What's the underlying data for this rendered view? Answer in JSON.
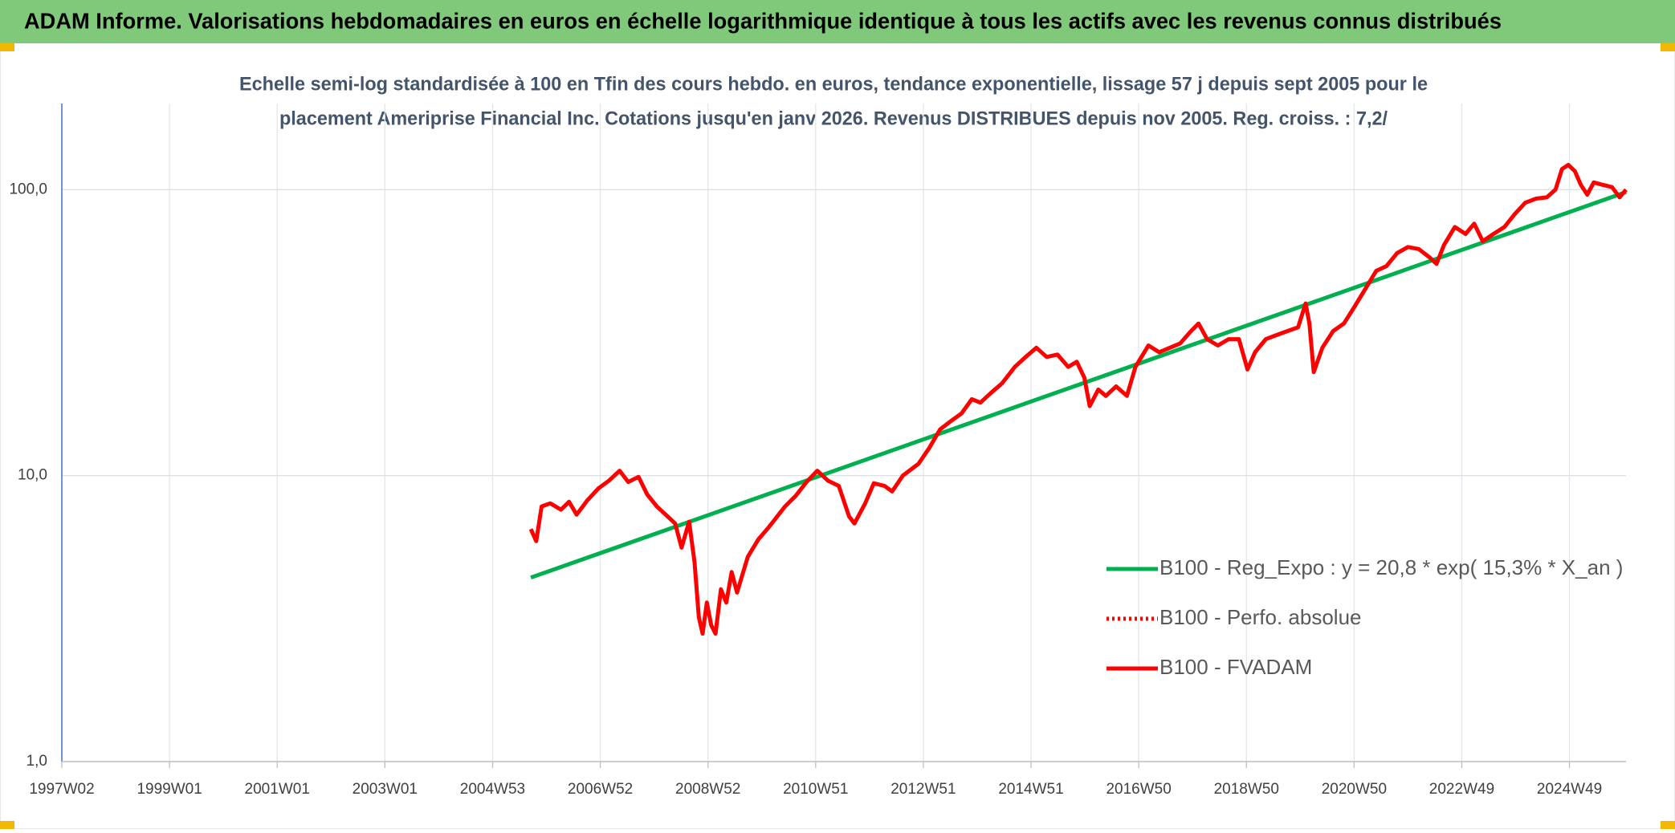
{
  "header": {
    "title": "ADAM Informe. Valorisations hebdomadaires en euros en échelle logarithmique identique à tous les actifs avec les revenus connus distribués"
  },
  "chart_data": {
    "type": "line",
    "title": [
      "Echelle semi-log standardisée à 100 en Tfin des cours hebdo. en euros, tendance exponentielle, lissage 57 j depuis sept 2005 pour le",
      "placement Ameriprise Financial Inc. Cotations jusqu'en janv 2026. Revenus DISTRIBUES depuis nov 2005. Reg. croiss. : 7,2/"
    ],
    "log_scale": true,
    "grid": true,
    "legend": "lower right",
    "xlim": [
      1997.0,
      2026.05
    ],
    "xticks": [
      {
        "value": 1997,
        "label": "1997W02"
      },
      {
        "value": 1999,
        "label": "1999W01"
      },
      {
        "value": 2001,
        "label": "2001W01"
      },
      {
        "value": 2003,
        "label": "2003W01"
      },
      {
        "value": 2005,
        "label": "2004W53"
      },
      {
        "value": 2007,
        "label": "2006W52"
      },
      {
        "value": 2009,
        "label": "2008W52"
      },
      {
        "value": 2011,
        "label": "2010W51"
      },
      {
        "value": 2013,
        "label": "2012W51"
      },
      {
        "value": 2015,
        "label": "2014W51"
      },
      {
        "value": 2017,
        "label": "2016W50"
      },
      {
        "value": 2019,
        "label": "2018W50"
      },
      {
        "value": 2021,
        "label": "2020W50"
      },
      {
        "value": 2023,
        "label": "2022W49"
      },
      {
        "value": 2025,
        "label": "2024W49"
      }
    ],
    "ylim": [
      1,
      200
    ],
    "yticks": [
      {
        "value": 1,
        "label": "1,0"
      },
      {
        "value": 10,
        "label": "10,0"
      },
      {
        "value": 100,
        "label": "100,0"
      }
    ],
    "series": [
      {
        "name": "B100 - Reg_Expo : y = 20,8 * exp( 15,3% *  X_an )",
        "color": "#00b050",
        "style": "solid",
        "x": [
          2005.71,
          2026.05
        ],
        "values": [
          4.4,
          98
        ]
      },
      {
        "name": "B100 - Perfo. absolue",
        "color": "#ff0000",
        "style": "dotted",
        "x": [],
        "values": []
      },
      {
        "name": "B100 - FVADAM",
        "color": "#ff0000",
        "style": "solid",
        "x": [
          2005.71,
          2005.81,
          2005.91,
          2006.07,
          2006.27,
          2006.42,
          2006.56,
          2006.76,
          2006.96,
          2007.16,
          2007.36,
          2007.52,
          2007.71,
          2007.87,
          2008.05,
          2008.25,
          2008.39,
          2008.51,
          2008.65,
          2008.75,
          2008.83,
          2008.9,
          2008.98,
          2009.06,
          2009.14,
          2009.24,
          2009.34,
          2009.44,
          2009.54,
          2009.74,
          2009.94,
          2010.13,
          2010.43,
          2010.63,
          2010.83,
          2011.03,
          2011.23,
          2011.43,
          2011.62,
          2011.72,
          2011.92,
          2012.08,
          2012.28,
          2012.42,
          2012.62,
          2012.91,
          2013.11,
          2013.31,
          2013.51,
          2013.71,
          2013.9,
          2014.06,
          2014.26,
          2014.46,
          2014.7,
          2014.9,
          2015.1,
          2015.29,
          2015.49,
          2015.69,
          2015.85,
          2015.99,
          2016.09,
          2016.25,
          2016.39,
          2016.58,
          2016.78,
          2016.94,
          2017.18,
          2017.38,
          2017.58,
          2017.77,
          2017.97,
          2018.11,
          2018.27,
          2018.47,
          2018.67,
          2018.86,
          2019.02,
          2019.16,
          2019.36,
          2019.56,
          2019.76,
          2019.96,
          2020.1,
          2020.17,
          2020.25,
          2020.41,
          2020.61,
          2020.81,
          2021.01,
          2021.21,
          2021.41,
          2021.6,
          2021.8,
          2022.0,
          2022.2,
          2022.4,
          2022.53,
          2022.67,
          2022.87,
          2023.07,
          2023.23,
          2023.39,
          2023.59,
          2023.79,
          2023.98,
          2024.18,
          2024.38,
          2024.58,
          2024.74,
          2024.86,
          2024.98,
          2025.1,
          2025.21,
          2025.33,
          2025.45,
          2025.61,
          2025.79,
          2025.93,
          2026.05
        ],
        "values": [
          6.5,
          5.9,
          7.8,
          8.0,
          7.6,
          8.1,
          7.3,
          8.2,
          9.0,
          9.6,
          10.4,
          9.5,
          9.9,
          8.6,
          7.8,
          7.2,
          6.8,
          5.6,
          6.9,
          5.0,
          3.2,
          2.8,
          3.6,
          3.0,
          2.8,
          4.0,
          3.6,
          4.6,
          3.9,
          5.2,
          6.0,
          6.6,
          7.8,
          8.5,
          9.5,
          10.4,
          9.6,
          9.2,
          7.2,
          6.8,
          8.0,
          9.4,
          9.2,
          8.8,
          10.0,
          11.0,
          12.5,
          14.5,
          15.5,
          16.5,
          18.5,
          18.0,
          19.5,
          21,
          24,
          26,
          28,
          26,
          26.5,
          24,
          25,
          22,
          17.5,
          20,
          19,
          20.5,
          19,
          24,
          28.5,
          27,
          28,
          29,
          32,
          34,
          30,
          28.5,
          30,
          30,
          23.5,
          27,
          30,
          31,
          32,
          33,
          40,
          34,
          23,
          28,
          32,
          34,
          39,
          45,
          52,
          54,
          60,
          63,
          62,
          58,
          55,
          64,
          74,
          70,
          76,
          66,
          70,
          74,
          82,
          90,
          93,
          94,
          100,
          118,
          122,
          116,
          104,
          96,
          106,
          104,
          102,
          94,
          100
        ]
      }
    ]
  }
}
